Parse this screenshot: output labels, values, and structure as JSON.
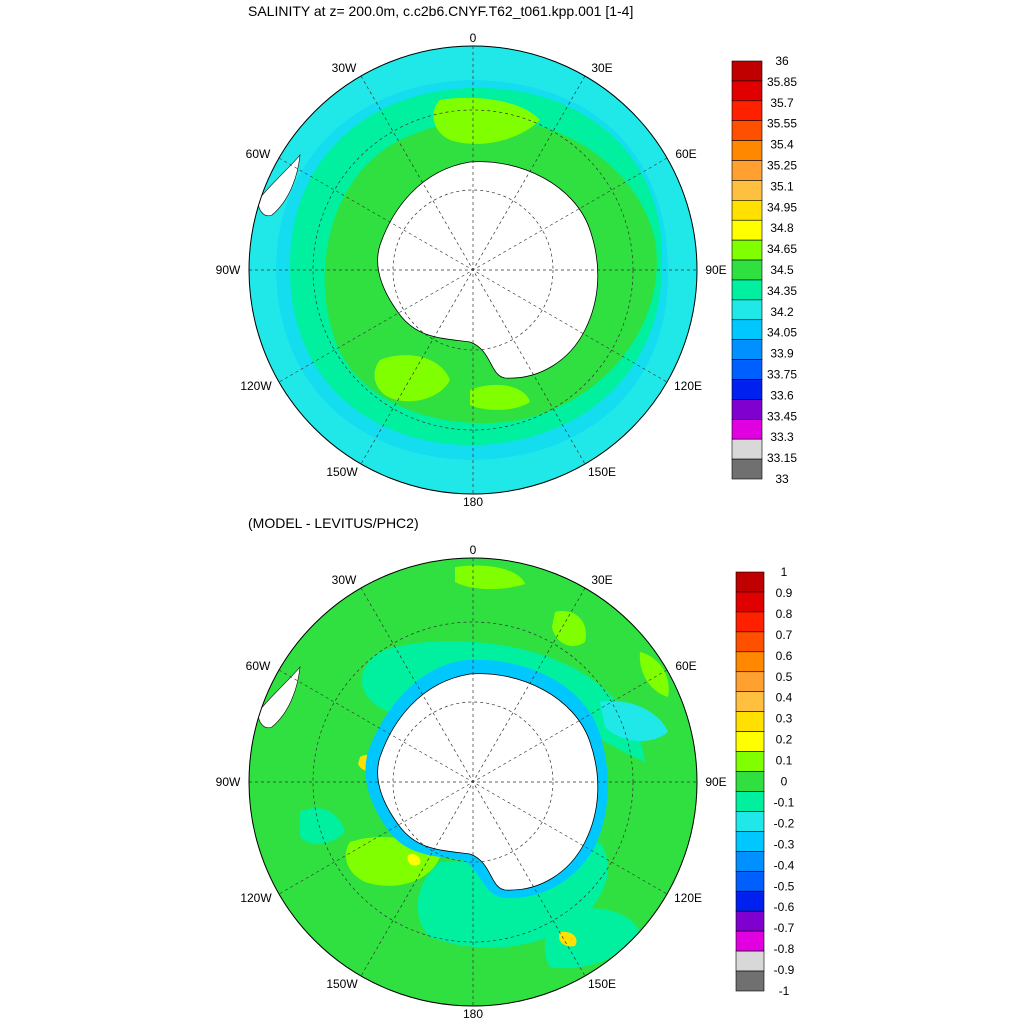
{
  "panels": [
    {
      "id": "top",
      "title": "SALINITY at z= 200.0m, c.c2b6.CNYF.T62_t061.kpp.001 [1-4]",
      "longitude_labels": [
        "0",
        "30E",
        "60E",
        "90E",
        "120E",
        "150E",
        "180",
        "150W",
        "120W",
        "90W",
        "60W",
        "30W"
      ],
      "colorbar": {
        "labels": [
          "36",
          "35.85",
          "35.7",
          "35.55",
          "35.4",
          "35.25",
          "35.1",
          "34.95",
          "34.8",
          "34.65",
          "34.5",
          "34.35",
          "34.2",
          "34.05",
          "33.9",
          "33.75",
          "33.6",
          "33.45",
          "33.3",
          "33.15",
          "33"
        ],
        "colors": [
          "#c00000",
          "#e00000",
          "#ff2000",
          "#ff5000",
          "#ff8800",
          "#ffa030",
          "#ffc040",
          "#ffe000",
          "#ffff00",
          "#80ff00",
          "#30e040",
          "#00f0a0",
          "#20e8e8",
          "#00c8ff",
          "#0090ff",
          "#0060ff",
          "#0020f0",
          "#8000d0",
          "#e000e0",
          "#d8d8d8",
          "#707070"
        ]
      }
    },
    {
      "id": "bottom",
      "title": "(MODEL - LEVITUS/PHC2)",
      "longitude_labels": [
        "0",
        "30E",
        "60E",
        "90E",
        "120E",
        "150E",
        "180",
        "150W",
        "120W",
        "90W",
        "60W",
        "30W"
      ],
      "colorbar": {
        "labels": [
          "1",
          "0.9",
          "0.8",
          "0.7",
          "0.6",
          "0.5",
          "0.4",
          "0.3",
          "0.2",
          "0.1",
          "0",
          "-0.1",
          "-0.2",
          "-0.3",
          "-0.4",
          "-0.5",
          "-0.6",
          "-0.7",
          "-0.8",
          "-0.9",
          "-1"
        ],
        "colors": [
          "#c00000",
          "#e00000",
          "#ff2000",
          "#ff5000",
          "#ff8800",
          "#ffa030",
          "#ffc040",
          "#ffe000",
          "#ffff00",
          "#80ff00",
          "#30e040",
          "#00f0a0",
          "#20e8e8",
          "#00c8ff",
          "#0090ff",
          "#0060ff",
          "#0020f0",
          "#8000d0",
          "#e000e0",
          "#d8d8d8",
          "#707070"
        ]
      }
    }
  ]
}
